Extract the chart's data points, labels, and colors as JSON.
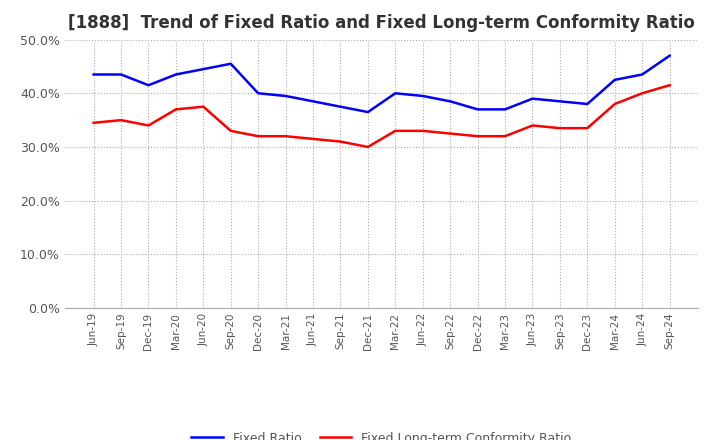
{
  "title": "[1888]  Trend of Fixed Ratio and Fixed Long-term Conformity Ratio",
  "x_labels": [
    "Jun-19",
    "Sep-19",
    "Dec-19",
    "Mar-20",
    "Jun-20",
    "Sep-20",
    "Dec-20",
    "Mar-21",
    "Jun-21",
    "Sep-21",
    "Dec-21",
    "Mar-22",
    "Jun-22",
    "Sep-22",
    "Dec-22",
    "Mar-23",
    "Jun-23",
    "Sep-23",
    "Dec-23",
    "Mar-24",
    "Jun-24",
    "Sep-24"
  ],
  "fixed_ratio": [
    43.5,
    43.5,
    41.5,
    43.5,
    44.5,
    45.5,
    40.0,
    39.5,
    38.5,
    37.5,
    36.5,
    40.0,
    39.5,
    38.5,
    37.0,
    37.0,
    39.0,
    38.5,
    38.0,
    42.5,
    43.5,
    47.0
  ],
  "fixed_lt_ratio": [
    34.5,
    35.0,
    34.0,
    37.0,
    37.5,
    33.0,
    32.0,
    32.0,
    31.5,
    31.0,
    30.0,
    33.0,
    33.0,
    32.5,
    32.0,
    32.0,
    34.0,
    33.5,
    33.5,
    38.0,
    40.0,
    41.5
  ],
  "fixed_ratio_color": "#0000ff",
  "fixed_lt_ratio_color": "#ff0000",
  "ylim": [
    0,
    50
  ],
  "yticks": [
    0,
    10,
    20,
    30,
    40,
    50
  ],
  "background_color": "#ffffff",
  "grid_color": "#aaaaaa",
  "title_fontsize": 12,
  "legend_fixed_ratio": "Fixed Ratio",
  "legend_fixed_lt_ratio": "Fixed Long-term Conformity Ratio"
}
